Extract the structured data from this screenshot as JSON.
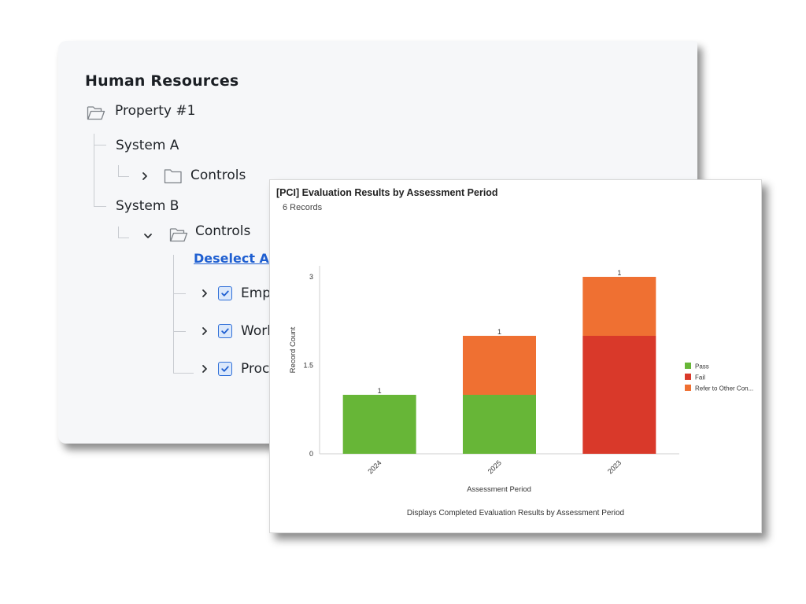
{
  "tree": {
    "title": "Human Resources",
    "root": {
      "label": "Property #1",
      "icon": "folder-open-icon"
    },
    "system_a": {
      "label": "System A",
      "controls_label": "Controls"
    },
    "system_b": {
      "label": "System B",
      "controls_label": "Controls"
    },
    "deselect_all": "Deselect All",
    "items": [
      {
        "label": "Emp",
        "checked": true
      },
      {
        "label": "Worl",
        "checked": true
      },
      {
        "label": "Proc",
        "checked": true
      }
    ]
  },
  "chart_panel": {
    "title": "[PCI] Evaluation Results by Assessment Period",
    "record_count": "6 Records",
    "footer": "Displays Completed Evaluation Results by Assessment Period"
  },
  "chart_data": {
    "type": "bar",
    "stacked": true,
    "categories": [
      "2024",
      "2025",
      "2023"
    ],
    "series": [
      {
        "name": "Pass",
        "color": "#67b637",
        "values": [
          1,
          1,
          0
        ]
      },
      {
        "name": "Fail",
        "color": "#d9392a",
        "values": [
          0,
          0,
          2
        ]
      },
      {
        "name": "Refer to Other Con...",
        "color": "#ef7032",
        "values": [
          0,
          1,
          1
        ]
      }
    ],
    "xlabel": "Assessment Period",
    "ylabel": "Record Count",
    "ylim": [
      0,
      3
    ],
    "yticks": [
      "0",
      "1.5",
      "3"
    ],
    "legend_position": "right",
    "grid": false
  }
}
